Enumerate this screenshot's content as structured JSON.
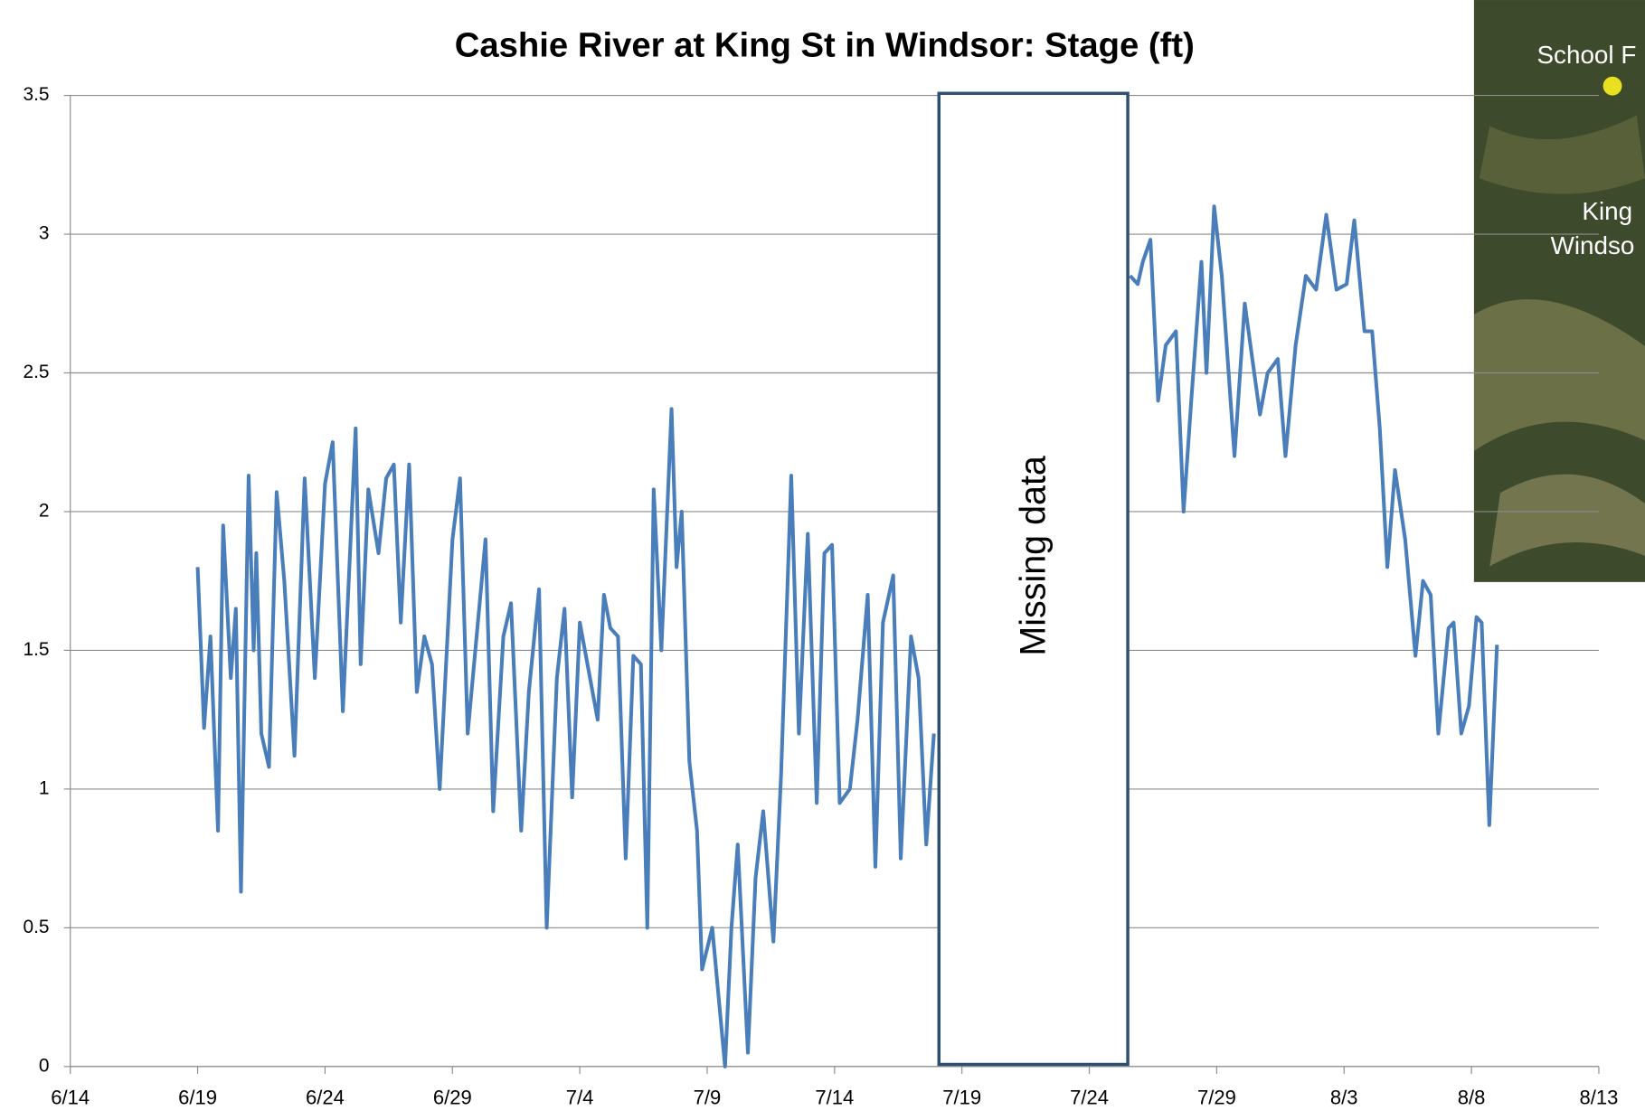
{
  "chart_data": {
    "type": "line",
    "title": "Cashie River at King St in Windsor: Stage (ft)",
    "annotation": "Missing data",
    "color": "#4a7ebb",
    "grid": true,
    "x": [
      5,
      5.25,
      5.5,
      5.8,
      6,
      6.3,
      6.5,
      6.7,
      7,
      7.2,
      7.3,
      7.5,
      7.8,
      8.1,
      8.4,
      8.8,
      9.2,
      9.6,
      10,
      10.3,
      10.7,
      11.2,
      11.4,
      11.7,
      12.1,
      12.4,
      12.7,
      12.97,
      13.3,
      13.6,
      13.9,
      14.2,
      14.5,
      15,
      15.3,
      15.6,
      16,
      16.3,
      16.6,
      17,
      17.3,
      17.7,
      18,
      18.4,
      18.7,
      19.1,
      19.4,
      19.7,
      20,
      20.4,
      20.7,
      20.95,
      21.2,
      21.5,
      21.8,
      22.1,
      22.4,
      22.65,
      22.9,
      23.2,
      23.6,
      23.8,
      24,
      24.3,
      24.6,
      24.8,
      25.2,
      25.7,
      25.95,
      26.2,
      26.6,
      26.9,
      27.2,
      27.6,
      27.9,
      28.3,
      28.6,
      28.95,
      29.3,
      29.6,
      29.9,
      30.2,
      30.6,
      30.9,
      31.3,
      31.6,
      31.9,
      32.3,
      32.6,
      33,
      33.3,
      33.6,
      33.9,
      38,
      41.6,
      41.9,
      42.1,
      42.4,
      42.7,
      43,
      43.4,
      43.7,
      44,
      44.4,
      44.6,
      44.9,
      45.2,
      45.7,
      46.1,
      46.4,
      46.7,
      47,
      47.4,
      47.7,
      48.1,
      48.5,
      48.9,
      49.3,
      49.7,
      50.1,
      50.4,
      50.8,
      51.1,
      51.4,
      51.7,
      52,
      52.4,
      52.8,
      53.1,
      53.4,
      53.7,
      54.1,
      54.3,
      54.6,
      54.9,
      55.2,
      55.4,
      55.7,
      56
    ],
    "values": [
      1.8,
      1.22,
      1.55,
      0.85,
      1.95,
      1.4,
      1.65,
      0.63,
      2.13,
      1.5,
      1.85,
      1.2,
      1.08,
      2.07,
      1.75,
      1.12,
      2.12,
      1.4,
      2.1,
      2.25,
      1.28,
      2.3,
      1.45,
      2.08,
      1.85,
      2.12,
      2.17,
      1.6,
      2.17,
      1.35,
      1.55,
      1.45,
      1.0,
      1.9,
      2.12,
      1.2,
      1.6,
      1.9,
      0.92,
      1.55,
      1.67,
      0.85,
      1.35,
      1.72,
      0.5,
      1.4,
      1.65,
      0.97,
      1.6,
      1.4,
      1.25,
      1.7,
      1.58,
      1.55,
      0.75,
      1.48,
      1.45,
      0.5,
      2.08,
      1.5,
      2.37,
      1.8,
      2.0,
      1.1,
      0.85,
      0.35,
      0.5,
      0.0,
      0.5,
      0.8,
      0.05,
      0.68,
      0.92,
      0.45,
      1.05,
      2.13,
      1.2,
      1.92,
      0.95,
      1.85,
      1.88,
      0.95,
      1.0,
      1.25,
      1.7,
      0.72,
      1.6,
      1.77,
      0.75,
      1.55,
      1.4,
      0.8,
      1.2,
      null,
      2.85,
      2.82,
      2.9,
      2.98,
      2.4,
      2.6,
      2.65,
      2.0,
      2.4,
      2.9,
      2.5,
      3.1,
      2.85,
      2.2,
      2.75,
      2.55,
      2.35,
      2.5,
      2.55,
      2.2,
      2.6,
      2.85,
      2.8,
      3.07,
      2.8,
      2.82,
      3.05,
      2.65,
      2.65,
      2.3,
      1.8,
      2.15,
      1.9,
      1.48,
      1.75,
      1.7,
      1.2,
      1.58,
      1.6,
      1.2,
      1.3,
      1.62,
      1.6,
      0.87,
      1.52
    ],
    "xlim": [
      0,
      60
    ],
    "xticks": [
      {
        "value": 0,
        "label": "6/14"
      },
      {
        "value": 5,
        "label": "6/19"
      },
      {
        "value": 10,
        "label": "6/24"
      },
      {
        "value": 15,
        "label": "6/29"
      },
      {
        "value": 20,
        "label": "7/4"
      },
      {
        "value": 25,
        "label": "7/9"
      },
      {
        "value": 30,
        "label": "7/14"
      },
      {
        "value": 35,
        "label": "7/19"
      },
      {
        "value": 40,
        "label": "7/24"
      },
      {
        "value": 45,
        "label": "7/29"
      },
      {
        "value": 50,
        "label": "8/3"
      },
      {
        "value": 55,
        "label": "8/8"
      },
      {
        "value": 60,
        "label": "8/13"
      }
    ],
    "ylim": [
      0,
      3.5
    ],
    "yticks": [
      0,
      0.5,
      1,
      1.5,
      2,
      2.5,
      3,
      3.5
    ]
  },
  "map_inset": {
    "labels": [
      "School F",
      "King",
      "Windso"
    ]
  }
}
